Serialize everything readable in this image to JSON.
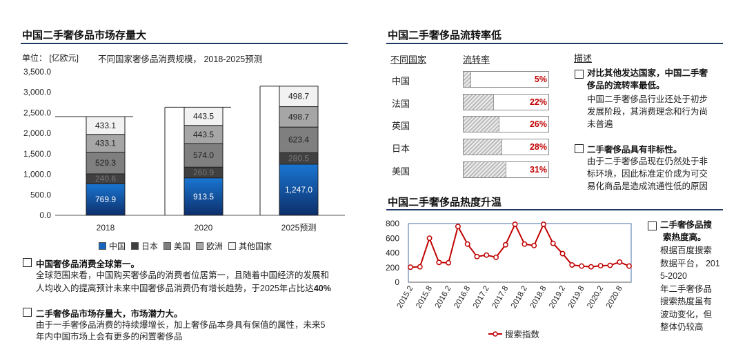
{
  "left": {
    "title": "中国二手奢侈品市场存量大",
    "unit_label": "单位：  [亿欧元]",
    "subtitle": "不同国家奢侈品消费规模，   2018-2025预测",
    "bullets": [
      {
        "head": "中国奢侈品消费全球第一。",
        "body_lines": [
          "全球范围来看，中国购买奢侈品的消费者位居第一，且随着中国经济的发展和",
          "人均收入的提高预计未来中国奢侈品消费仍有增长趋势，于2025年占比达"
        ],
        "body_bold_tail": "40%"
      },
      {
        "head": "二手奢侈品市场存量大，市场潜力大。",
        "body_lines": [
          "由于一手奢侈品消费的持续爆增长，加上奢侈品本身具有保值的属性，未来5",
          "年内中国市场上会有更多的闲置奢侈品"
        ]
      }
    ]
  },
  "right_top": {
    "title": "中国二手奢侈品流转率低",
    "col_country": "不同国家",
    "col_rate": "流转率",
    "col_desc": "描述",
    "bullets": [
      {
        "head_lines": [
          "对比其他发达国家，中国二手奢",
          "侈品的流转率最低。"
        ],
        "body_lines": [
          "中国二手奢侈品行业还处于初步",
          "发展阶段，其消费理念和行为尚",
          "未普遍"
        ]
      },
      {
        "head_lines": [
          "二手奢侈品具有非标性。"
        ],
        "body_lines": [
          "由于二手奢侈品现在仍然处于非",
          "标环境，因此标准定价成为可交",
          "易化商品是造成流通性低的原因"
        ]
      }
    ]
  },
  "right_bottom": {
    "title": "中国二手奢侈品热度升温",
    "bullet_head_lines": [
      "二手奢侈品搜",
      "索热度高。"
    ],
    "bullet_body_lines": [
      "根据百度搜索",
      "数据平台，  201",
      "5-2020",
      "年二手奢侈品",
      "搜索热度虽有",
      "波动变化，但",
      "整体仍较高"
    ]
  },
  "chart_data": [
    {
      "type": "bar",
      "stacked": true,
      "title": "不同国家奢侈品消费规模，   2018-2025预测",
      "ylabel": "[亿欧元]",
      "ylim": [
        0,
        3500
      ],
      "yticks": [
        "0.0",
        "500.0",
        "1,000.0",
        "1,500.0",
        "2,000.0",
        "2,500.0",
        "3,000.0",
        "3,500.0"
      ],
      "categories": [
        "2018",
        "2020",
        "2025预测"
      ],
      "legend_position": "bottom",
      "series": [
        {
          "name": "中国",
          "color": "#1565c0",
          "values": [
            769.9,
            913.5,
            1247.0
          ],
          "labels": [
            "769.9",
            "913.5",
            "1,247.0"
          ]
        },
        {
          "name": "日本",
          "color": "#404040",
          "values": [
            240.6,
            260.9,
            280.5
          ],
          "labels": [
            "240.6",
            "260.9",
            "280.5"
          ]
        },
        {
          "name": "美国",
          "color": "#7f7f7f",
          "values": [
            529.3,
            574.0,
            623.4
          ],
          "labels": [
            "529.3",
            "574.0",
            "623.4"
          ]
        },
        {
          "name": "欧洲",
          "color": "#a6a6a6",
          "values": [
            433.1,
            443.5,
            498.7
          ],
          "labels": [
            "433.1",
            "443.5",
            "498.7"
          ]
        },
        {
          "name": "其他国家",
          "color": "#f2f2f2",
          "values": [
            433.1,
            443.5,
            498.7
          ],
          "labels": [
            "433.1",
            "443.5",
            "498.7"
          ]
        }
      ]
    },
    {
      "type": "bar",
      "orientation": "horizontal",
      "categories": [
        "中国",
        "法国",
        "英国",
        "日本",
        "美国"
      ],
      "values": [
        5,
        22,
        26,
        28,
        31
      ],
      "labels": [
        "5%",
        "22%",
        "26%",
        "28%",
        "31%"
      ],
      "unit": "%"
    },
    {
      "type": "line",
      "x": [
        "2015.2",
        "2015.5",
        "2015.8",
        "2015.11",
        "2016.2",
        "2016.5",
        "2016.8",
        "2016.11",
        "2017.2",
        "2017.5",
        "2017.8",
        "2017.11",
        "2018.2",
        "2018.5",
        "2018.8",
        "2018.11",
        "2019.2",
        "2019.5",
        "2019.8",
        "2019.11",
        "2020.2",
        "2020.5",
        "2020.8",
        "2020.11"
      ],
      "xticks": [
        "2015.2",
        "2015.8",
        "2016.2",
        "2016.8",
        "2017.2",
        "2017.8",
        "2018.2",
        "2018.8",
        "2019.2",
        "2019.8",
        "2020.2",
        "2020.8"
      ],
      "ylim": [
        0,
        800
      ],
      "yticks": [
        "0",
        "200",
        "400",
        "600",
        "800"
      ],
      "legend_position": "bottom",
      "series": [
        {
          "name": "搜索指数",
          "color": "#c00000",
          "values": [
            205,
            210,
            600,
            270,
            265,
            760,
            520,
            350,
            370,
            340,
            510,
            790,
            520,
            500,
            790,
            530,
            390,
            235,
            220,
            210,
            225,
            230,
            275,
            220
          ]
        }
      ]
    }
  ]
}
